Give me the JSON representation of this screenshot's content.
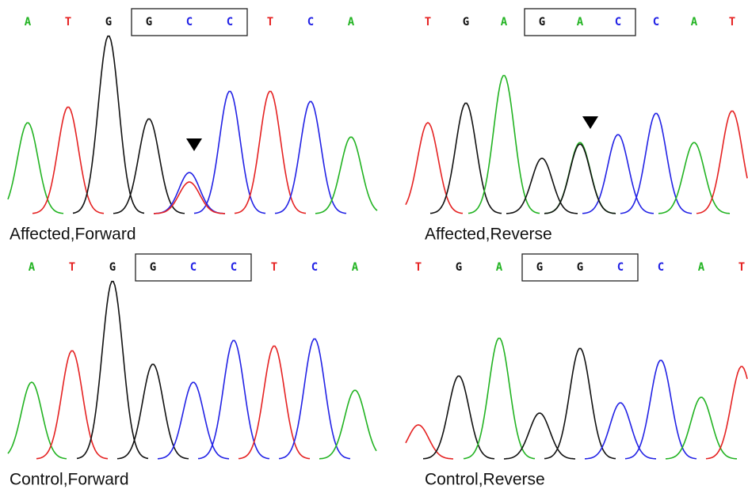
{
  "base_colors": {
    "A": "#22b322",
    "T": "#e52222",
    "G": "#111111",
    "C": "#2222e5"
  },
  "panels": [
    {
      "label": "Affected,Forward",
      "bases": [
        "A",
        "T",
        "G",
        "G",
        "C",
        "C",
        "T",
        "C",
        "A"
      ]
    },
    {
      "label": "Affected,Reverse",
      "bases": [
        "T",
        "G",
        "A",
        "G",
        "A",
        "C",
        "C",
        "A",
        "T"
      ]
    },
    {
      "label": "Control,Forward",
      "bases": [
        "A",
        "T",
        "G",
        "G",
        "C",
        "C",
        "T",
        "C",
        "A"
      ]
    },
    {
      "label": "Control,Reverse",
      "bases": [
        "T",
        "G",
        "A",
        "G",
        "G",
        "C",
        "C",
        "A",
        "T"
      ]
    }
  ]
}
